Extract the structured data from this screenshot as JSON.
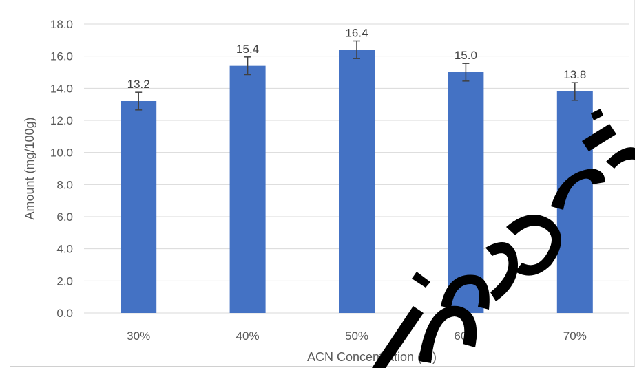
{
  "chart_data": {
    "type": "bar",
    "categories": [
      "30%",
      "40%",
      "50%",
      "60%",
      "70%"
    ],
    "values": [
      13.2,
      15.4,
      16.4,
      15.0,
      13.8
    ],
    "errors": [
      0.55,
      0.55,
      0.55,
      0.55,
      0.55
    ],
    "data_labels": [
      "13.2",
      "15.4",
      "16.4",
      "15.0",
      "13.8"
    ],
    "xlabel": "ACN Concentration (%)",
    "ylabel": "Amount (mg/100g)",
    "ylim": [
      0,
      18
    ],
    "yticks": [
      "0.0",
      "2.0",
      "4.0",
      "6.0",
      "8.0",
      "10.0",
      "12.0",
      "14.0",
      "16.0",
      "18.0"
    ],
    "grid": true,
    "bar_color": "#4472C4",
    "watermark_text": "manuscript"
  }
}
